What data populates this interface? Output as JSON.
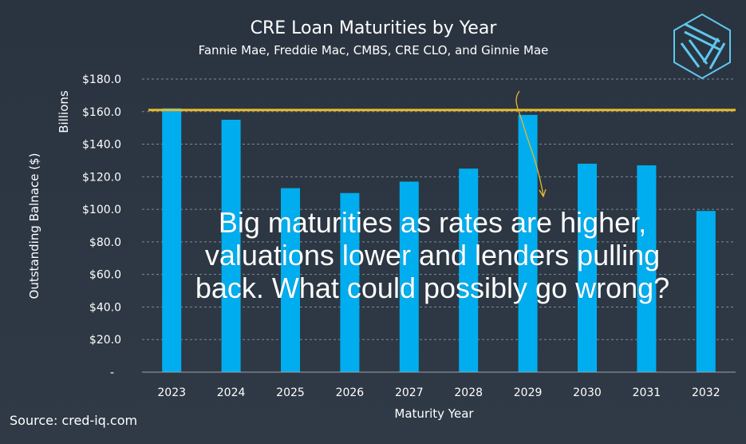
{
  "colors": {
    "background": "#2c3642",
    "bar": "#00aeef",
    "threshold_line": "#e9b92b",
    "text": "#ffffff",
    "logo": "#5ec8ef"
  },
  "logo": {
    "icon": "cred-iq-cube-logo"
  },
  "annotation": {
    "text": "Big maturities as rates are higher, valuations lower and lenders pulling back. What could possibly go wrong?"
  },
  "source": "Source: cred-iq.com",
  "chart_data": {
    "type": "bar",
    "title": "CRE Loan Maturities by Year",
    "subtitle": "Fannie Mae, Freddie Mac, CMBS, CRE CLO, and Ginnie Mae",
    "xlabel": "Maturity Year",
    "ylabel": "Outstanding Balnace ($)",
    "yunit_label": "Billions",
    "categories": [
      "2023",
      "2024",
      "2025",
      "2026",
      "2027",
      "2028",
      "2029",
      "2030",
      "2031",
      "2032"
    ],
    "values": [
      162,
      155,
      113,
      110,
      117,
      125,
      158,
      128,
      127,
      99
    ],
    "ylim": [
      0,
      180
    ],
    "yticks": [
      0,
      20,
      40,
      60,
      80,
      100,
      120,
      140,
      160,
      180
    ],
    "ytick_labels": [
      "-",
      "$20.0",
      "$40.0",
      "$60.0",
      "$80.0",
      "$100.0",
      "$120.0",
      "$140.0",
      "$160.0",
      "$180.0"
    ],
    "reference_line": 161,
    "grid": "horizontal dashed",
    "legend": "none"
  }
}
